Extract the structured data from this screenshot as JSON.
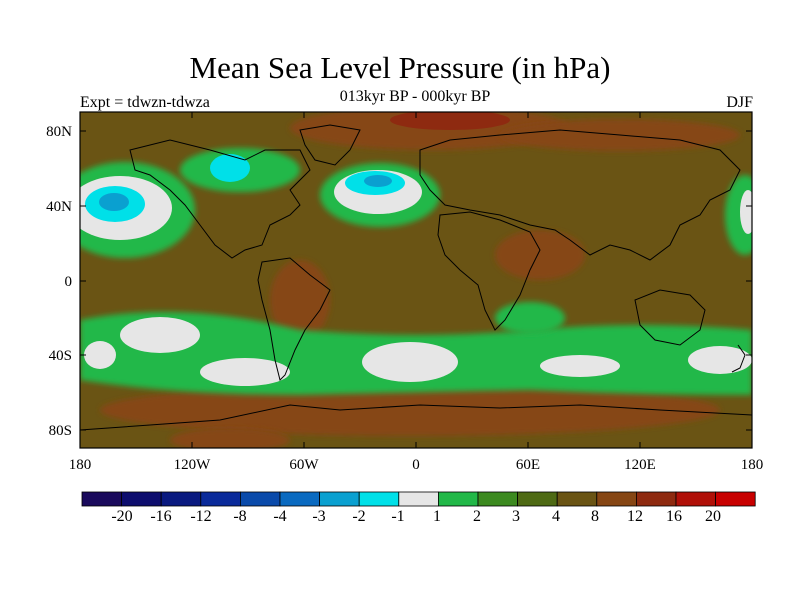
{
  "title": "Mean Sea Level Pressure (in hPa)",
  "subtitle": "013kyr BP - 000kyr BP",
  "left_label": "Expt = tdwzn-tdwza",
  "right_label": "DJF",
  "y_ticks": [
    "80N",
    "40N",
    "0",
    "40S",
    "80S"
  ],
  "x_ticks": [
    "180",
    "120W",
    "60W",
    "0",
    "60E",
    "120E",
    "180"
  ],
  "colorbar": {
    "colors": [
      "#1a0a5c",
      "#0d0d6e",
      "#0a1a80",
      "#0a2a9a",
      "#0a4aaa",
      "#0a6ac0",
      "#0aa0d0",
      "#00e0e8",
      "#e6e6e6",
      "#22b848",
      "#3c8a20",
      "#4e6a14",
      "#6a5414",
      "#864614",
      "#8e2a10",
      "#b01008",
      "#c80000"
    ],
    "labels": [
      "-20",
      "-16",
      "-12",
      "-8",
      "-4",
      "-3",
      "-2",
      "-1",
      "1",
      "2",
      "3",
      "4",
      "8",
      "12",
      "16",
      "20"
    ]
  },
  "map": {
    "background_color": "#6a5414",
    "positive_highs_color": "#864614",
    "arctic_color": "#8e2a10",
    "ring_green": "#22b848",
    "ring_mid": "#3c8a20",
    "light": "#e6e6e6",
    "cyan": "#00e0e8",
    "blue": "#0aa0d0",
    "coast_color": "#000000"
  }
}
